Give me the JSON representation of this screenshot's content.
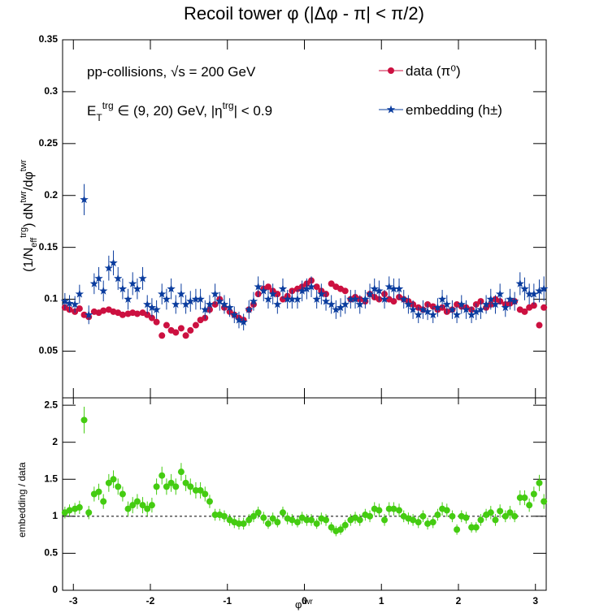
{
  "chart_data": [
    {
      "type": "scatter",
      "title": "Recoil tower φ (|Δφ - π| < π/2)",
      "ylabel_parts": [
        "(1/N",
        "eff",
        "trg",
        ") dN",
        "twr",
        "/dφ",
        "twr"
      ],
      "annotations": [
        [
          "pp-collisions, √s = 200 GeV"
        ],
        [
          "E",
          "T",
          "trg",
          " ∈ (9, 20) GeV, |η",
          "trg",
          "| < 0.9"
        ]
      ],
      "legend": "top-right",
      "xlim": [
        -3.14,
        3.14
      ],
      "xticks": [
        -3,
        -2,
        -1,
        0,
        1,
        2,
        3
      ],
      "ylim": [
        0.005,
        0.35
      ],
      "yticks": [
        0.05,
        0.1,
        0.15,
        0.2,
        0.25,
        0.3,
        0.35
      ],
      "x": [
        -3.11,
        -3.05,
        -2.98,
        -2.92,
        -2.86,
        -2.8,
        -2.73,
        -2.67,
        -2.61,
        -2.54,
        -2.48,
        -2.42,
        -2.36,
        -2.29,
        -2.23,
        -2.17,
        -2.1,
        -2.04,
        -1.98,
        -1.92,
        -1.85,
        -1.79,
        -1.73,
        -1.67,
        -1.6,
        -1.54,
        -1.48,
        -1.41,
        -1.35,
        -1.29,
        -1.23,
        -1.16,
        -1.1,
        -1.04,
        -0.97,
        -0.91,
        -0.85,
        -0.79,
        -0.72,
        -0.66,
        -0.6,
        -0.53,
        -0.47,
        -0.41,
        -0.35,
        -0.28,
        -0.22,
        -0.16,
        -0.09,
        -0.03,
        0.03,
        0.09,
        0.16,
        0.22,
        0.28,
        0.35,
        0.41,
        0.47,
        0.53,
        0.6,
        0.66,
        0.72,
        0.79,
        0.85,
        0.91,
        0.97,
        1.04,
        1.1,
        1.16,
        1.23,
        1.29,
        1.35,
        1.41,
        1.48,
        1.54,
        1.6,
        1.67,
        1.73,
        1.79,
        1.85,
        1.92,
        1.98,
        2.04,
        2.1,
        2.17,
        2.23,
        2.29,
        2.36,
        2.42,
        2.48,
        2.54,
        2.61,
        2.67,
        2.73,
        2.8,
        2.86,
        2.92,
        2.98,
        3.05,
        3.11
      ],
      "series": [
        {
          "name": "data (π⁰)",
          "color": "#cc1040",
          "marker": "circle",
          "values": [
            0.092,
            0.09,
            0.088,
            0.091,
            0.085,
            0.083,
            0.088,
            0.087,
            0.089,
            0.09,
            0.088,
            0.087,
            0.085,
            0.086,
            0.087,
            0.086,
            0.087,
            0.085,
            0.082,
            0.078,
            0.065,
            0.075,
            0.07,
            0.068,
            0.072,
            0.065,
            0.07,
            0.075,
            0.08,
            0.082,
            0.09,
            0.095,
            0.1,
            0.092,
            0.088,
            0.085,
            0.082,
            0.08,
            0.09,
            0.095,
            0.105,
            0.11,
            0.112,
            0.108,
            0.105,
            0.1,
            0.103,
            0.108,
            0.11,
            0.112,
            0.115,
            0.118,
            0.112,
            0.108,
            0.105,
            0.115,
            0.112,
            0.11,
            0.108,
            0.1,
            0.102,
            0.1,
            0.098,
            0.105,
            0.102,
            0.1,
            0.105,
            0.1,
            0.098,
            0.102,
            0.1,
            0.098,
            0.095,
            0.092,
            0.09,
            0.095,
            0.093,
            0.09,
            0.092,
            0.088,
            0.09,
            0.095,
            0.093,
            0.092,
            0.09,
            0.095,
            0.098,
            0.092,
            0.095,
            0.1,
            0.098,
            0.095,
            0.096,
            0.098,
            0.09,
            0.088,
            0.092,
            0.094,
            0.075,
            0.092
          ]
        },
        {
          "name": "embedding (h±)",
          "color": "#0a3c9e",
          "marker": "star",
          "values": [
            0.098,
            0.096,
            0.095,
            0.105,
            0.196,
            0.085,
            0.115,
            0.12,
            0.108,
            0.13,
            0.135,
            0.12,
            0.11,
            0.1,
            0.115,
            0.11,
            0.12,
            0.095,
            0.092,
            0.09,
            0.105,
            0.1,
            0.11,
            0.095,
            0.105,
            0.095,
            0.098,
            0.1,
            0.1,
            0.09,
            0.095,
            0.105,
            0.098,
            0.095,
            0.092,
            0.085,
            0.08,
            0.078,
            0.09,
            0.098,
            0.112,
            0.108,
            0.1,
            0.105,
            0.095,
            0.11,
            0.1,
            0.1,
            0.1,
            0.108,
            0.11,
            0.112,
            0.1,
            0.105,
            0.098,
            0.095,
            0.09,
            0.092,
            0.095,
            0.1,
            0.1,
            0.095,
            0.1,
            0.105,
            0.11,
            0.108,
            0.1,
            0.112,
            0.11,
            0.11,
            0.1,
            0.095,
            0.09,
            0.085,
            0.09,
            0.088,
            0.085,
            0.092,
            0.1,
            0.095,
            0.09,
            0.085,
            0.095,
            0.09,
            0.085,
            0.088,
            0.09,
            0.095,
            0.1,
            0.095,
            0.105,
            0.092,
            0.1,
            0.098,
            0.115,
            0.11,
            0.105,
            0.105,
            0.108,
            0.11
          ],
          "errors": [
            0.008,
            0.008,
            0.008,
            0.009,
            0.015,
            0.009,
            0.01,
            0.011,
            0.01,
            0.012,
            0.012,
            0.011,
            0.01,
            0.01,
            0.011,
            0.01,
            0.011,
            0.009,
            0.009,
            0.009,
            0.01,
            0.01,
            0.01,
            0.009,
            0.01,
            0.009,
            0.01,
            0.01,
            0.01,
            0.009,
            0.009,
            0.01,
            0.009,
            0.009,
            0.009,
            0.008,
            0.008,
            0.008,
            0.009,
            0.009,
            0.01,
            0.01,
            0.009,
            0.01,
            0.009,
            0.01,
            0.009,
            0.009,
            0.009,
            0.01,
            0.01,
            0.01,
            0.009,
            0.01,
            0.009,
            0.009,
            0.009,
            0.009,
            0.009,
            0.009,
            0.009,
            0.009,
            0.009,
            0.01,
            0.01,
            0.01,
            0.009,
            0.01,
            0.01,
            0.01,
            0.009,
            0.009,
            0.009,
            0.008,
            0.009,
            0.008,
            0.008,
            0.009,
            0.009,
            0.009,
            0.009,
            0.008,
            0.009,
            0.009,
            0.008,
            0.008,
            0.009,
            0.009,
            0.01,
            0.009,
            0.01,
            0.009,
            0.01,
            0.009,
            0.011,
            0.011,
            0.01,
            0.01,
            0.011,
            0.012
          ]
        }
      ]
    },
    {
      "type": "scatter",
      "ylabel": "embedding / data",
      "xlabel_parts": [
        "φ",
        "twr"
      ],
      "hline": 1,
      "xlim": [
        -3.14,
        3.14
      ],
      "xticks": [
        -3,
        -2,
        -1,
        0,
        1,
        2,
        3
      ],
      "ylim": [
        0,
        2.6
      ],
      "yticks": [
        0,
        0.5,
        1,
        1.5,
        2,
        2.5
      ],
      "series": [
        {
          "color": "#44cc11",
          "marker": "circle",
          "values": [
            1.05,
            1.08,
            1.1,
            1.12,
            2.3,
            1.05,
            1.3,
            1.33,
            1.2,
            1.45,
            1.5,
            1.4,
            1.3,
            1.1,
            1.15,
            1.2,
            1.15,
            1.1,
            1.15,
            1.4,
            1.55,
            1.4,
            1.45,
            1.4,
            1.6,
            1.45,
            1.4,
            1.35,
            1.35,
            1.3,
            1.2,
            1.02,
            1.02,
            1.0,
            0.95,
            0.92,
            0.9,
            0.9,
            0.95,
            1.0,
            1.05,
            0.98,
            0.9,
            0.97,
            0.92,
            1.05,
            0.97,
            0.95,
            0.92,
            0.98,
            0.95,
            0.95,
            0.9,
            0.97,
            0.95,
            0.85,
            0.8,
            0.82,
            0.88,
            0.95,
            0.98,
            0.95,
            1.02,
            1.0,
            1.1,
            1.08,
            0.95,
            1.1,
            1.1,
            1.08,
            1.0,
            0.97,
            0.95,
            0.92,
            1.0,
            0.9,
            0.92,
            1.02,
            1.1,
            1.08,
            1.0,
            0.82,
            1.0,
            0.98,
            0.85,
            0.85,
            0.95,
            1.02,
            1.05,
            0.95,
            1.07,
            1.0,
            1.05,
            1.0,
            1.25,
            1.25,
            1.15,
            1.3,
            1.45,
            1.2
          ],
          "errors": [
            0.08,
            0.08,
            0.08,
            0.09,
            0.18,
            0.09,
            0.1,
            0.11,
            0.1,
            0.12,
            0.12,
            0.11,
            0.1,
            0.1,
            0.11,
            0.1,
            0.11,
            0.1,
            0.1,
            0.11,
            0.12,
            0.11,
            0.12,
            0.11,
            0.12,
            0.11,
            0.11,
            0.11,
            0.11,
            0.1,
            0.09,
            0.08,
            0.08,
            0.08,
            0.08,
            0.08,
            0.08,
            0.08,
            0.08,
            0.08,
            0.08,
            0.08,
            0.07,
            0.08,
            0.07,
            0.08,
            0.08,
            0.08,
            0.07,
            0.08,
            0.08,
            0.08,
            0.07,
            0.08,
            0.08,
            0.07,
            0.07,
            0.07,
            0.07,
            0.08,
            0.08,
            0.08,
            0.08,
            0.08,
            0.09,
            0.09,
            0.08,
            0.09,
            0.09,
            0.09,
            0.08,
            0.08,
            0.08,
            0.08,
            0.08,
            0.08,
            0.08,
            0.08,
            0.09,
            0.09,
            0.08,
            0.07,
            0.08,
            0.08,
            0.07,
            0.07,
            0.08,
            0.08,
            0.09,
            0.08,
            0.09,
            0.08,
            0.09,
            0.08,
            0.1,
            0.1,
            0.09,
            0.1,
            0.11,
            0.1
          ]
        }
      ]
    }
  ]
}
